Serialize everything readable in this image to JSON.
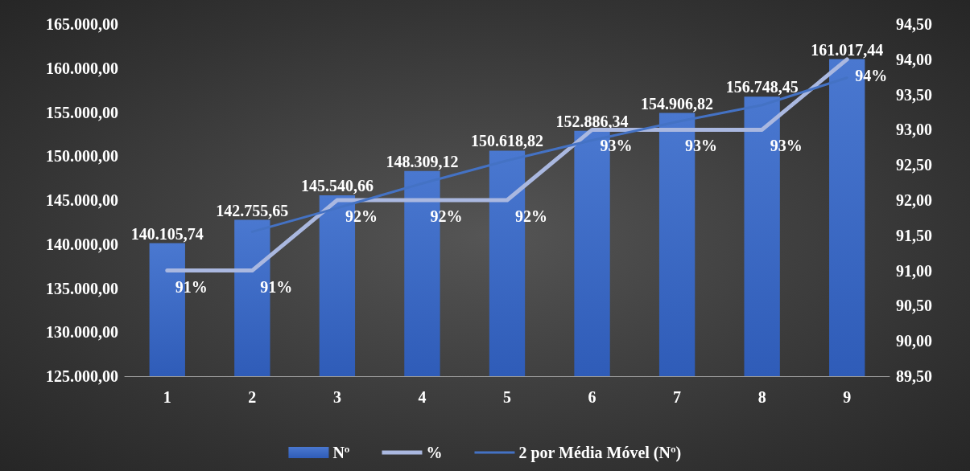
{
  "chart_data": {
    "type": "bar",
    "categories": [
      "1",
      "2",
      "3",
      "4",
      "5",
      "6",
      "7",
      "8",
      "9"
    ],
    "series": [
      {
        "name": "Nº",
        "color": "#4a78d0",
        "values": [
          140105.74,
          142755.65,
          145540.66,
          148309.12,
          150618.82,
          152886.34,
          154906.82,
          156748.45,
          161017.44
        ],
        "value_labels": [
          "140.105,74",
          "142.755,65",
          "145.540,66",
          "148.309,12",
          "150.618,82",
          "152.886,34",
          "154.906,82",
          "156.748,45",
          "161.017,44"
        ]
      },
      {
        "name": "%",
        "type": "line",
        "axis": "y2",
        "color": "#aab8e0",
        "values": [
          91,
          91,
          92,
          92,
          92,
          93,
          93,
          93,
          94
        ],
        "value_labels": [
          "91%",
          "91%",
          "92%",
          "92%",
          "92%",
          "93%",
          "93%",
          "93%",
          "94%"
        ]
      },
      {
        "name": "2 por Média Móvel (Nº)",
        "type": "line",
        "color": "#4472c4",
        "values": [
          null,
          141400,
          144100,
          146900,
          149500,
          151800,
          153900,
          155800,
          158900
        ]
      }
    ],
    "ylim": [
      125000,
      165000
    ],
    "yticks": [
      {
        "value": 125000,
        "label": "125.000,00"
      },
      {
        "value": 130000,
        "label": "130.000,00"
      },
      {
        "value": 135000,
        "label": "135.000,00"
      },
      {
        "value": 140000,
        "label": "140.000,00"
      },
      {
        "value": 145000,
        "label": "145.000,00"
      },
      {
        "value": 150000,
        "label": "150.000,00"
      },
      {
        "value": 155000,
        "label": "155.000,00"
      },
      {
        "value": 160000,
        "label": "160.000,00"
      },
      {
        "value": 165000,
        "label": "165.000,00"
      }
    ],
    "y2lim": [
      89.5,
      94.5
    ],
    "y2ticks": [
      {
        "value": 89.5,
        "label": "89,50"
      },
      {
        "value": 90,
        "label": "90,00"
      },
      {
        "value": 90.5,
        "label": "90,50"
      },
      {
        "value": 91,
        "label": "91,00"
      },
      {
        "value": 91.5,
        "label": "91,50"
      },
      {
        "value": 92,
        "label": "92,00"
      },
      {
        "value": 92.5,
        "label": "92,50"
      },
      {
        "value": 93,
        "label": "93,00"
      },
      {
        "value": 93.5,
        "label": "93,50"
      },
      {
        "value": 94,
        "label": "94,00"
      },
      {
        "value": 94.5,
        "label": "94,50"
      }
    ],
    "legend": "bottom",
    "marker": "none",
    "grid": false
  }
}
